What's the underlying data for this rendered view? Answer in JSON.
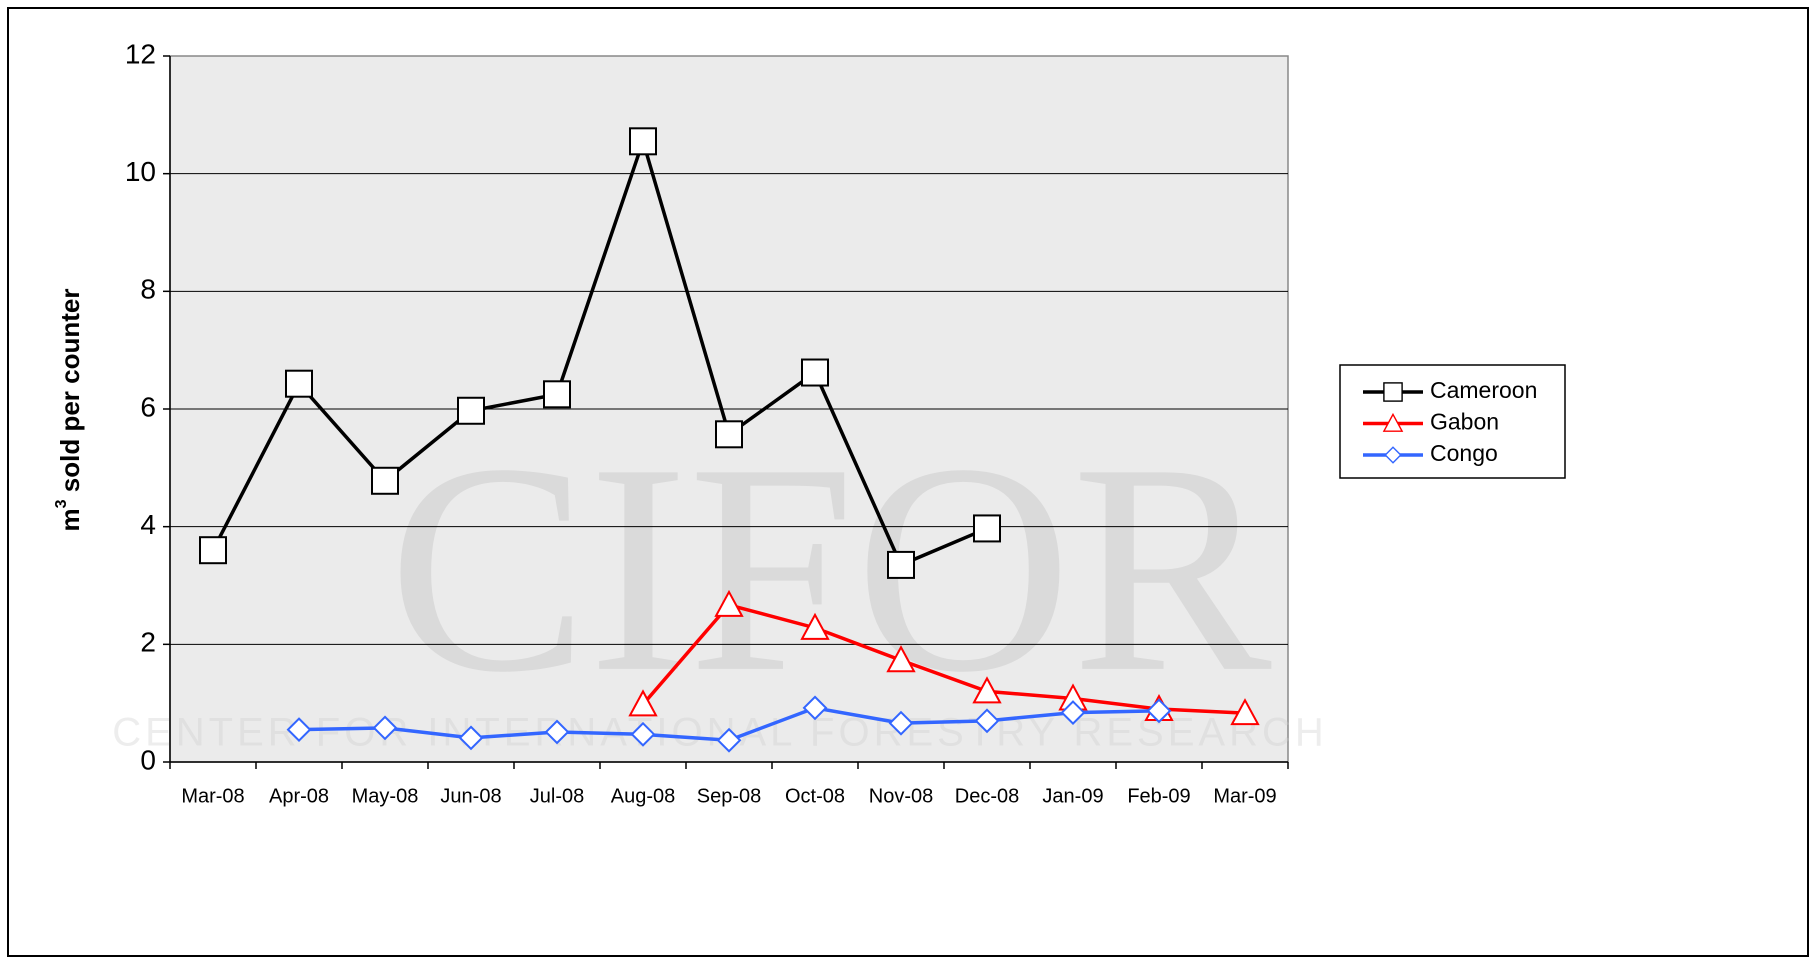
{
  "chart_data": {
    "type": "line",
    "y_label": {
      "base": "m",
      "sup": "3",
      "rest": " sold per counter"
    },
    "watermark": {
      "logo": "CIFOR",
      "tagline": "CENTER FOR INTERNATIONAL FORESTRY RESEARCH"
    },
    "categories": [
      "Mar-08",
      "Apr-08",
      "May-08",
      "Jun-08",
      "Jul-08",
      "Aug-08",
      "Sep-08",
      "Oct-08",
      "Nov-08",
      "Dec-08",
      "Jan-09",
      "Feb-09",
      "Mar-09"
    ],
    "series": [
      {
        "name": "Cameroon",
        "color": "#000000",
        "marker": "square",
        "values": [
          3.6,
          6.43,
          4.78,
          5.97,
          6.25,
          10.55,
          5.57,
          6.62,
          3.35,
          3.97,
          null,
          null,
          null
        ]
      },
      {
        "name": "Gabon",
        "color": "#ff0000",
        "marker": "triangle",
        "values": [
          null,
          null,
          null,
          null,
          null,
          0.98,
          2.67,
          2.28,
          1.73,
          1.2,
          1.08,
          0.9,
          0.83
        ]
      },
      {
        "name": "Congo",
        "color": "#3366ff",
        "marker": "diamond",
        "values": [
          null,
          0.55,
          0.58,
          0.41,
          0.51,
          0.47,
          0.37,
          0.92,
          0.66,
          0.7,
          0.84,
          0.87,
          null
        ]
      }
    ],
    "ylim": [
      0,
      12
    ],
    "yticks": [
      0,
      2,
      4,
      6,
      8,
      10,
      12
    ],
    "grid": true,
    "legend": "right"
  }
}
